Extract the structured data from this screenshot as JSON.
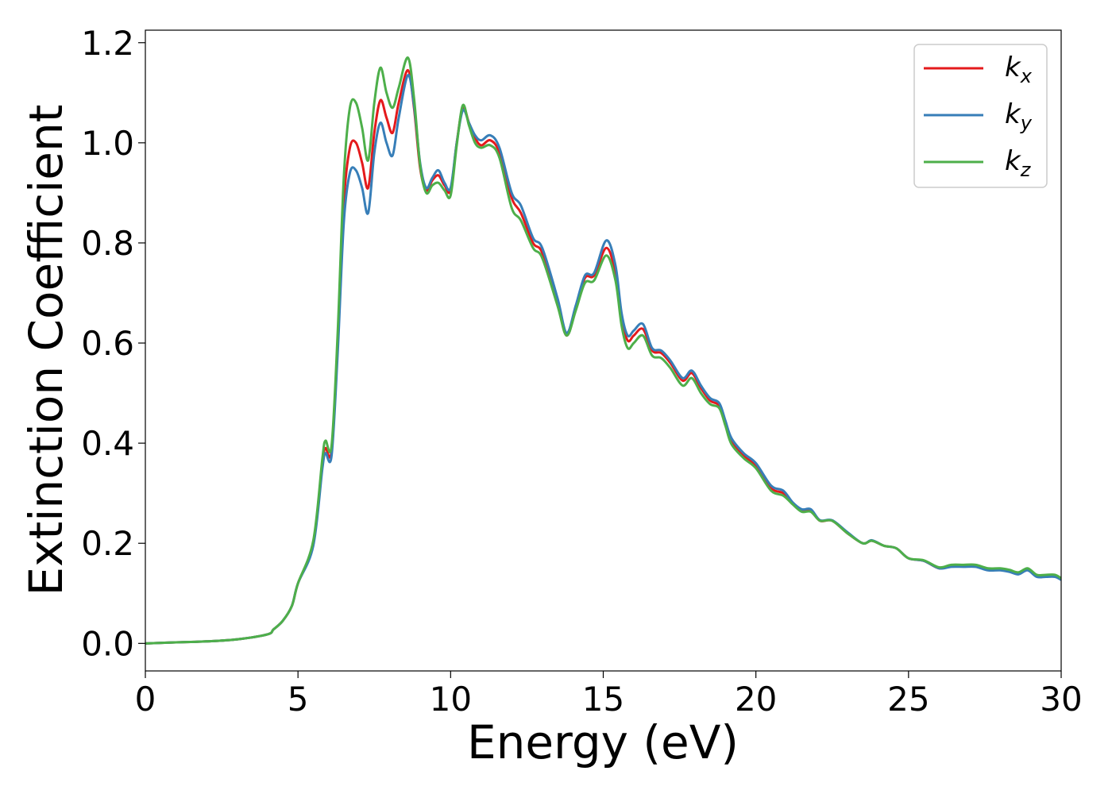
{
  "chart_data": {
    "type": "line",
    "title": "",
    "xlabel": "Energy (eV)",
    "ylabel": "Extinction Coefficient",
    "xlim": [
      0,
      30
    ],
    "ylim": [
      -0.055,
      1.225
    ],
    "xticks": [
      0,
      5,
      10,
      15,
      20,
      25,
      30
    ],
    "xtick_labels": [
      "0",
      "5",
      "10",
      "15",
      "20",
      "25",
      "30"
    ],
    "yticks": [
      0.0,
      0.2,
      0.4,
      0.6,
      0.8,
      1.0,
      1.2
    ],
    "ytick_labels": [
      "0.0",
      "0.2",
      "0.4",
      "0.6",
      "0.8",
      "1.0",
      "1.2"
    ],
    "grid": false,
    "legend_position": "top-right",
    "x": [
      0,
      1,
      2,
      3,
      4,
      4.2,
      4.5,
      4.8,
      5,
      5.5,
      5.8,
      5.9,
      6.1,
      6.3,
      6.5,
      6.7,
      6.9,
      7.1,
      7.3,
      7.5,
      7.7,
      7.9,
      8.1,
      8.3,
      8.6,
      8.8,
      9.0,
      9.2,
      9.4,
      9.6,
      9.8,
      10.0,
      10.2,
      10.4,
      10.6,
      10.8,
      11.0,
      11.3,
      11.6,
      12.0,
      12.3,
      12.7,
      13.0,
      13.5,
      13.8,
      14.1,
      14.4,
      14.7,
      15.1,
      15.4,
      15.6,
      15.8,
      16.0,
      16.3,
      16.6,
      16.9,
      17.2,
      17.6,
      17.9,
      18.2,
      18.5,
      18.8,
      19.0,
      19.2,
      19.6,
      20.0,
      20.5,
      20.9,
      21.2,
      21.5,
      21.8,
      22.1,
      22.5,
      23.0,
      23.5,
      23.8,
      24.2,
      24.6,
      25.0,
      25.5,
      26.0,
      26.4,
      26.8,
      27.2,
      27.6,
      28.0,
      28.3,
      28.6,
      28.9,
      29.2,
      29.5,
      29.8,
      30.0
    ],
    "series": [
      {
        "name": "k_x",
        "label_main": "k",
        "label_sub": "x",
        "color": "#e41a1c",
        "values": [
          0.0,
          0.002,
          0.004,
          0.008,
          0.018,
          0.028,
          0.045,
          0.075,
          0.12,
          0.2,
          0.36,
          0.39,
          0.385,
          0.6,
          0.88,
          0.99,
          1.0,
          0.96,
          0.91,
          1.02,
          1.085,
          1.05,
          1.02,
          1.08,
          1.145,
          1.07,
          0.95,
          0.905,
          0.925,
          0.935,
          0.915,
          0.905,
          1.0,
          1.07,
          1.04,
          1.01,
          0.995,
          1.005,
          0.98,
          0.89,
          0.86,
          0.8,
          0.78,
          0.68,
          0.615,
          0.67,
          0.73,
          0.735,
          0.79,
          0.74,
          0.65,
          0.605,
          0.615,
          0.628,
          0.585,
          0.58,
          0.56,
          0.525,
          0.54,
          0.51,
          0.485,
          0.475,
          0.44,
          0.405,
          0.375,
          0.355,
          0.31,
          0.3,
          0.28,
          0.265,
          0.265,
          0.245,
          0.245,
          0.22,
          0.2,
          0.205,
          0.195,
          0.19,
          0.17,
          0.165,
          0.15,
          0.155,
          0.155,
          0.155,
          0.148,
          0.148,
          0.145,
          0.14,
          0.148,
          0.135,
          0.135,
          0.135,
          0.128
        ]
      },
      {
        "name": "k_y",
        "label_main": "k",
        "label_sub": "y",
        "color": "#377eb8",
        "values": [
          0.0,
          0.002,
          0.004,
          0.008,
          0.018,
          0.028,
          0.045,
          0.075,
          0.12,
          0.195,
          0.35,
          0.38,
          0.375,
          0.58,
          0.84,
          0.94,
          0.945,
          0.91,
          0.86,
          0.98,
          1.04,
          1.0,
          0.975,
          1.05,
          1.135,
          1.075,
          0.96,
          0.91,
          0.93,
          0.945,
          0.92,
          0.91,
          1.0,
          1.065,
          1.04,
          1.015,
          1.005,
          1.015,
          0.99,
          0.9,
          0.875,
          0.81,
          0.79,
          0.69,
          0.62,
          0.675,
          0.735,
          0.74,
          0.805,
          0.755,
          0.66,
          0.615,
          0.625,
          0.638,
          0.59,
          0.585,
          0.565,
          0.53,
          0.545,
          0.515,
          0.49,
          0.48,
          0.445,
          0.41,
          0.38,
          0.36,
          0.315,
          0.305,
          0.282,
          0.268,
          0.268,
          0.246,
          0.246,
          0.222,
          0.2,
          0.206,
          0.195,
          0.19,
          0.17,
          0.165,
          0.15,
          0.153,
          0.153,
          0.153,
          0.146,
          0.146,
          0.143,
          0.138,
          0.146,
          0.133,
          0.133,
          0.133,
          0.127
        ]
      },
      {
        "name": "k_z",
        "label_main": "k",
        "label_sub": "z",
        "color": "#4daf4a",
        "values": [
          0.0,
          0.002,
          0.004,
          0.008,
          0.018,
          0.028,
          0.045,
          0.075,
          0.12,
          0.205,
          0.37,
          0.405,
          0.395,
          0.62,
          0.93,
          1.07,
          1.08,
          1.03,
          0.965,
          1.08,
          1.15,
          1.1,
          1.07,
          1.11,
          1.17,
          1.09,
          0.955,
          0.9,
          0.915,
          0.92,
          0.905,
          0.895,
          0.995,
          1.075,
          1.035,
          1.0,
          0.99,
          0.995,
          0.97,
          0.87,
          0.845,
          0.79,
          0.77,
          0.675,
          0.615,
          0.665,
          0.72,
          0.725,
          0.775,
          0.725,
          0.635,
          0.59,
          0.6,
          0.615,
          0.575,
          0.57,
          0.55,
          0.515,
          0.53,
          0.5,
          0.478,
          0.47,
          0.435,
          0.398,
          0.37,
          0.35,
          0.305,
          0.295,
          0.278,
          0.263,
          0.263,
          0.245,
          0.245,
          0.22,
          0.2,
          0.205,
          0.195,
          0.19,
          0.17,
          0.166,
          0.152,
          0.157,
          0.157,
          0.157,
          0.15,
          0.15,
          0.147,
          0.142,
          0.15,
          0.137,
          0.137,
          0.137,
          0.13
        ]
      }
    ]
  }
}
